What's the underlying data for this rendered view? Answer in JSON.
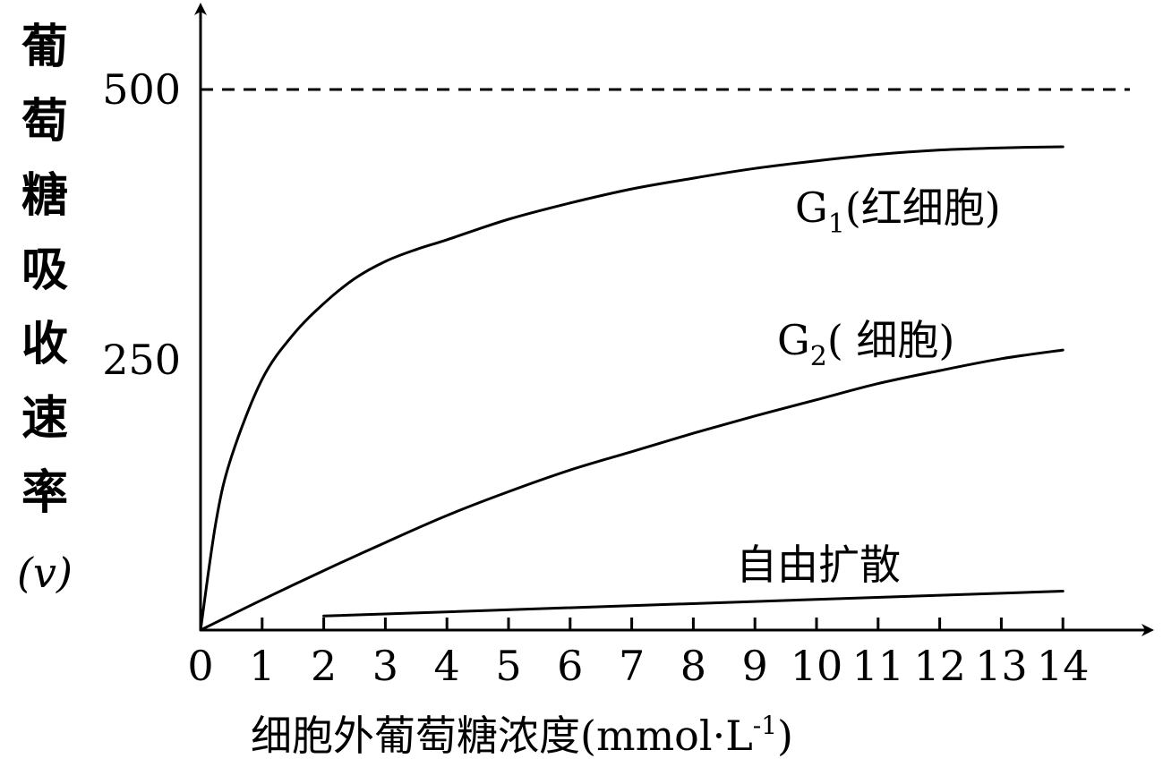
{
  "chart_data": {
    "type": "line",
    "title": "",
    "xlabel": "细胞外葡萄糖浓度(mmol·L",
    "xlabel_sup": "-1",
    "xlabel_close": ")",
    "ylabel_chars": [
      "葡",
      "萄",
      "糖",
      "吸",
      "收",
      "速",
      "率"
    ],
    "ylabel_unit": "(v)",
    "xlim": [
      0,
      14
    ],
    "ylim": [
      0,
      500
    ],
    "x_ticks": [
      0,
      1,
      2,
      3,
      4,
      5,
      6,
      7,
      8,
      9,
      10,
      11,
      12,
      13,
      14
    ],
    "x_tick_labels": [
      "0",
      "1",
      "2",
      "3",
      "4",
      "5",
      "6",
      "7",
      "8",
      "9",
      "10",
      "11",
      "12",
      "13",
      "14"
    ],
    "y_ticks": [
      250,
      500
    ],
    "y_tick_labels": [
      "250",
      "500"
    ],
    "reference_line": {
      "y": 500,
      "style": "dashed"
    },
    "grid": false,
    "series": [
      {
        "name_main": "G",
        "name_sub": "1",
        "name_rest": "(红细胞)",
        "x": [
          0,
          0.25,
          0.5,
          1,
          1.5,
          2,
          2.5,
          3,
          3.5,
          4,
          5,
          6,
          7,
          8,
          9,
          10,
          11,
          12,
          13,
          14
        ],
        "y": [
          0,
          100,
          160,
          232,
          273,
          302,
          325,
          341,
          352,
          361,
          380,
          395,
          408,
          418,
          427,
          434,
          440,
          444,
          446,
          447
        ]
      },
      {
        "name_main": "G",
        "name_sub": "2",
        "name_rest": "( 细胞)",
        "x": [
          0,
          1,
          2,
          3,
          4,
          5,
          6,
          7,
          8,
          9,
          10,
          11,
          12,
          13,
          14
        ],
        "y": [
          0,
          28,
          55,
          81,
          106,
          128,
          148,
          165,
          182,
          198,
          213,
          228,
          240,
          251,
          259
        ]
      },
      {
        "name_main": "自由扩散",
        "name_sub": "",
        "name_rest": "",
        "x": [
          2,
          14
        ],
        "y": [
          13,
          36
        ]
      }
    ]
  }
}
